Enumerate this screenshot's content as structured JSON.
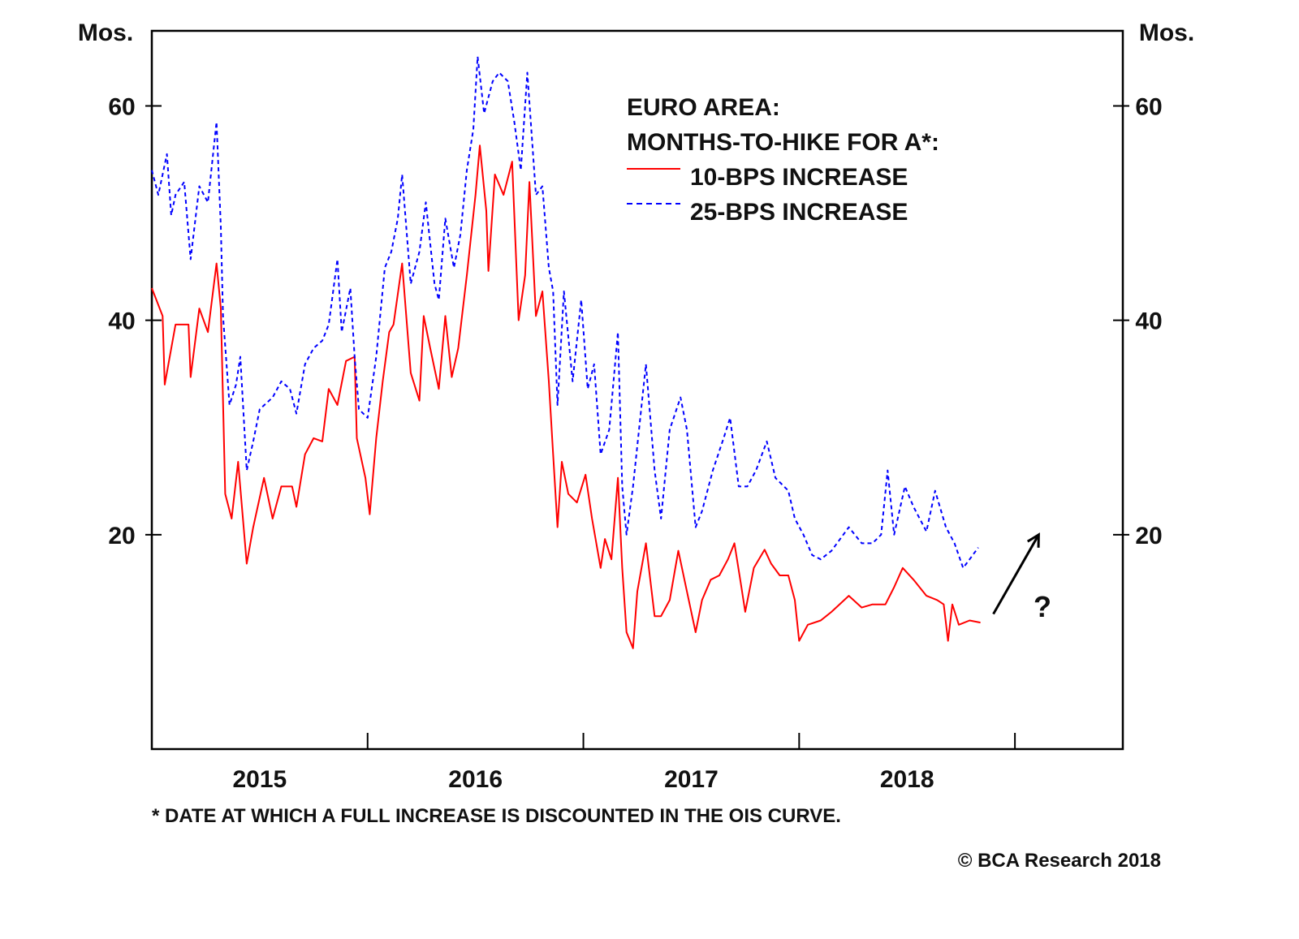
{
  "chart_data": {
    "type": "line",
    "title": "EURO AREA:",
    "subtitle": "MONTHS-TO-HIKE FOR A*:",
    "ylabel_left": "Mos.",
    "ylabel_right": "Mos.",
    "ylim": [
      0,
      67
    ],
    "yticks": [
      20,
      40,
      60
    ],
    "xlim": [
      2015.0,
      2019.5
    ],
    "xtick_boundaries": [
      2016,
      2017,
      2018,
      2019
    ],
    "xtick_labels": [
      {
        "label": "2015",
        "x": 2015.5
      },
      {
        "label": "2016",
        "x": 2016.5
      },
      {
        "label": "2017",
        "x": 2017.5
      },
      {
        "label": "2018",
        "x": 2018.5
      }
    ],
    "grid": false,
    "legend_placement": "top-right",
    "series": [
      {
        "name": "10-BPS INCREASE",
        "color": "#ff0000",
        "style": "solid",
        "points": [
          [
            2015.0,
            43.0
          ],
          [
            2015.05,
            40.4
          ],
          [
            2015.06,
            34.0
          ],
          [
            2015.11,
            39.6
          ],
          [
            2015.17,
            39.6
          ],
          [
            2015.18,
            34.7
          ],
          [
            2015.22,
            41.1
          ],
          [
            2015.26,
            38.9
          ],
          [
            2015.3,
            45.3
          ],
          [
            2015.32,
            41.1
          ],
          [
            2015.34,
            23.8
          ],
          [
            2015.37,
            21.5
          ],
          [
            2015.4,
            26.8
          ],
          [
            2015.44,
            17.3
          ],
          [
            2015.47,
            20.7
          ],
          [
            2015.52,
            25.3
          ],
          [
            2015.56,
            21.5
          ],
          [
            2015.6,
            24.5
          ],
          [
            2015.65,
            24.5
          ],
          [
            2015.67,
            22.6
          ],
          [
            2015.71,
            27.5
          ],
          [
            2015.75,
            29.0
          ],
          [
            2015.79,
            28.7
          ],
          [
            2015.82,
            33.6
          ],
          [
            2015.86,
            32.1
          ],
          [
            2015.9,
            36.2
          ],
          [
            2015.94,
            36.6
          ],
          [
            2015.95,
            29.0
          ],
          [
            2015.99,
            25.3
          ],
          [
            2016.01,
            21.9
          ],
          [
            2016.04,
            29.0
          ],
          [
            2016.07,
            34.3
          ],
          [
            2016.1,
            38.9
          ],
          [
            2016.12,
            39.6
          ],
          [
            2016.16,
            45.3
          ],
          [
            2016.2,
            35.1
          ],
          [
            2016.24,
            32.5
          ],
          [
            2016.26,
            40.4
          ],
          [
            2016.29,
            37.4
          ],
          [
            2016.33,
            33.6
          ],
          [
            2016.36,
            40.4
          ],
          [
            2016.39,
            34.7
          ],
          [
            2016.42,
            37.4
          ],
          [
            2016.46,
            44.2
          ],
          [
            2016.5,
            51.7
          ],
          [
            2016.52,
            56.3
          ],
          [
            2016.55,
            50.2
          ],
          [
            2016.56,
            44.6
          ],
          [
            2016.59,
            53.6
          ],
          [
            2016.63,
            51.7
          ],
          [
            2016.67,
            54.8
          ],
          [
            2016.7,
            40.0
          ],
          [
            2016.73,
            44.2
          ],
          [
            2016.75,
            52.9
          ],
          [
            2016.78,
            40.4
          ],
          [
            2016.81,
            42.7
          ],
          [
            2016.84,
            34.3
          ],
          [
            2016.86,
            27.5
          ],
          [
            2016.88,
            20.7
          ],
          [
            2016.9,
            26.8
          ],
          [
            2016.93,
            23.8
          ],
          [
            2016.97,
            23.0
          ],
          [
            2017.01,
            25.6
          ],
          [
            2017.04,
            21.5
          ],
          [
            2017.08,
            16.9
          ],
          [
            2017.1,
            19.6
          ],
          [
            2017.13,
            17.7
          ],
          [
            2017.16,
            25.3
          ],
          [
            2017.18,
            16.9
          ],
          [
            2017.2,
            10.9
          ],
          [
            2017.23,
            9.4
          ],
          [
            2017.25,
            14.7
          ],
          [
            2017.29,
            19.2
          ],
          [
            2017.33,
            12.4
          ],
          [
            2017.36,
            12.4
          ],
          [
            2017.4,
            13.9
          ],
          [
            2017.44,
            18.5
          ],
          [
            2017.48,
            14.7
          ],
          [
            2017.52,
            10.9
          ],
          [
            2017.55,
            13.9
          ],
          [
            2017.59,
            15.8
          ],
          [
            2017.63,
            16.2
          ],
          [
            2017.67,
            17.7
          ],
          [
            2017.7,
            19.2
          ],
          [
            2017.73,
            15.4
          ],
          [
            2017.75,
            12.8
          ],
          [
            2017.79,
            16.9
          ],
          [
            2017.84,
            18.6
          ],
          [
            2017.87,
            17.3
          ],
          [
            2017.91,
            16.2
          ],
          [
            2017.95,
            16.2
          ],
          [
            2017.98,
            13.9
          ],
          [
            2018.0,
            10.1
          ],
          [
            2018.04,
            11.6
          ],
          [
            2018.1,
            12.0
          ],
          [
            2018.15,
            12.8
          ],
          [
            2018.23,
            14.3
          ],
          [
            2018.29,
            13.2
          ],
          [
            2018.34,
            13.5
          ],
          [
            2018.4,
            13.5
          ],
          [
            2018.44,
            15.1
          ],
          [
            2018.48,
            16.9
          ],
          [
            2018.53,
            15.8
          ],
          [
            2018.59,
            14.3
          ],
          [
            2018.64,
            13.9
          ],
          [
            2018.67,
            13.5
          ],
          [
            2018.69,
            10.1
          ],
          [
            2018.71,
            13.5
          ],
          [
            2018.74,
            11.6
          ],
          [
            2018.79,
            12.0
          ],
          [
            2018.84,
            11.8
          ]
        ]
      },
      {
        "name": "25-BPS INCREASE",
        "color": "#0000ff",
        "style": "dashed",
        "points": [
          [
            2015.0,
            54.0
          ],
          [
            2015.03,
            51.7
          ],
          [
            2015.07,
            55.5
          ],
          [
            2015.09,
            49.8
          ],
          [
            2015.11,
            51.7
          ],
          [
            2015.15,
            52.9
          ],
          [
            2015.18,
            45.7
          ],
          [
            2015.22,
            52.5
          ],
          [
            2015.26,
            51.0
          ],
          [
            2015.3,
            58.5
          ],
          [
            2015.32,
            48.7
          ],
          [
            2015.33,
            40.4
          ],
          [
            2015.36,
            32.1
          ],
          [
            2015.39,
            34.0
          ],
          [
            2015.41,
            36.6
          ],
          [
            2015.44,
            26.0
          ],
          [
            2015.47,
            28.7
          ],
          [
            2015.5,
            31.7
          ],
          [
            2015.56,
            32.8
          ],
          [
            2015.6,
            34.3
          ],
          [
            2015.64,
            33.6
          ],
          [
            2015.67,
            31.3
          ],
          [
            2015.71,
            35.9
          ],
          [
            2015.75,
            37.4
          ],
          [
            2015.79,
            38.1
          ],
          [
            2015.82,
            39.6
          ],
          [
            2015.86,
            45.7
          ],
          [
            2015.88,
            38.9
          ],
          [
            2015.92,
            43.0
          ],
          [
            2015.94,
            36.6
          ],
          [
            2015.96,
            31.7
          ],
          [
            2016.0,
            30.9
          ],
          [
            2016.04,
            36.6
          ],
          [
            2016.08,
            44.9
          ],
          [
            2016.11,
            46.4
          ],
          [
            2016.14,
            49.5
          ],
          [
            2016.16,
            53.6
          ],
          [
            2016.2,
            43.4
          ],
          [
            2016.24,
            46.4
          ],
          [
            2016.27,
            51.0
          ],
          [
            2016.31,
            43.4
          ],
          [
            2016.33,
            41.9
          ],
          [
            2016.36,
            49.5
          ],
          [
            2016.4,
            44.9
          ],
          [
            2016.43,
            48.0
          ],
          [
            2016.46,
            54.0
          ],
          [
            2016.49,
            57.8
          ],
          [
            2016.51,
            64.6
          ],
          [
            2016.54,
            59.3
          ],
          [
            2016.58,
            62.3
          ],
          [
            2016.61,
            63.1
          ],
          [
            2016.65,
            62.3
          ],
          [
            2016.68,
            58.5
          ],
          [
            2016.71,
            54.0
          ],
          [
            2016.74,
            63.1
          ],
          [
            2016.78,
            51.7
          ],
          [
            2016.81,
            52.5
          ],
          [
            2016.84,
            44.9
          ],
          [
            2016.86,
            42.7
          ],
          [
            2016.88,
            32.1
          ],
          [
            2016.91,
            42.7
          ],
          [
            2016.95,
            34.3
          ],
          [
            2016.99,
            41.9
          ],
          [
            2017.02,
            33.6
          ],
          [
            2017.05,
            35.9
          ],
          [
            2017.08,
            27.5
          ],
          [
            2017.12,
            29.8
          ],
          [
            2017.16,
            38.9
          ],
          [
            2017.18,
            24.5
          ],
          [
            2017.2,
            20.0
          ],
          [
            2017.23,
            24.5
          ],
          [
            2017.29,
            35.9
          ],
          [
            2017.33,
            26.0
          ],
          [
            2017.36,
            21.5
          ],
          [
            2017.4,
            29.8
          ],
          [
            2017.45,
            32.8
          ],
          [
            2017.48,
            29.8
          ],
          [
            2017.52,
            20.7
          ],
          [
            2017.55,
            22.2
          ],
          [
            2017.6,
            26.0
          ],
          [
            2017.65,
            29.0
          ],
          [
            2017.68,
            30.9
          ],
          [
            2017.72,
            24.5
          ],
          [
            2017.76,
            24.5
          ],
          [
            2017.8,
            26.0
          ],
          [
            2017.85,
            28.7
          ],
          [
            2017.89,
            25.3
          ],
          [
            2017.95,
            24.1
          ],
          [
            2017.98,
            21.5
          ],
          [
            2018.02,
            20.0
          ],
          [
            2018.06,
            18.1
          ],
          [
            2018.1,
            17.7
          ],
          [
            2018.15,
            18.5
          ],
          [
            2018.23,
            20.7
          ],
          [
            2018.29,
            19.2
          ],
          [
            2018.34,
            19.2
          ],
          [
            2018.38,
            20.0
          ],
          [
            2018.41,
            26.0
          ],
          [
            2018.44,
            20.0
          ],
          [
            2018.49,
            24.5
          ],
          [
            2018.53,
            22.6
          ],
          [
            2018.59,
            20.3
          ],
          [
            2018.63,
            24.1
          ],
          [
            2018.68,
            20.7
          ],
          [
            2018.72,
            19.2
          ],
          [
            2018.76,
            16.9
          ],
          [
            2018.79,
            17.7
          ],
          [
            2018.83,
            18.8
          ]
        ]
      }
    ],
    "annotation": {
      "text": "?",
      "arrow_from": [
        2018.9,
        12.6
      ],
      "arrow_to": [
        2019.11,
        20.0
      ],
      "color": "#000000"
    },
    "footnote": "* DATE AT WHICH A FULL INCREASE IS DISCOUNTED IN THE OIS CURVE.",
    "source": "© BCA Research 2018"
  }
}
